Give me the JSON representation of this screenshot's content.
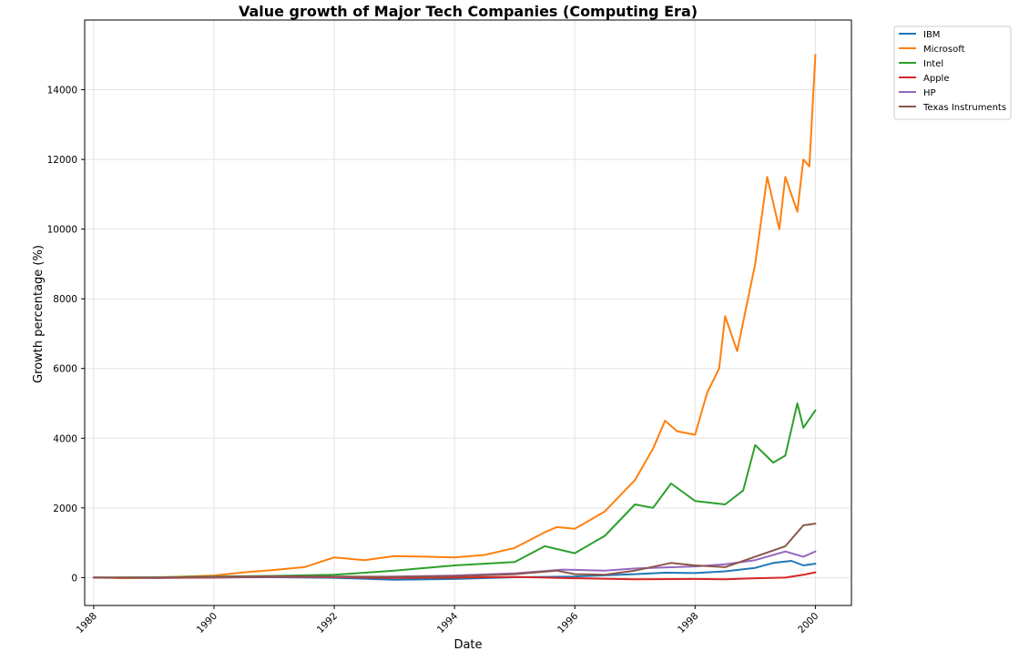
{
  "chart_data": {
    "type": "line",
    "title": "Value growth of Major Tech Companies (Computing Era)",
    "xlabel": "Date",
    "ylabel": "Growth percentage (%)",
    "xlim": [
      1987.85,
      2000.6
    ],
    "ylim": [
      -800,
      16000
    ],
    "x_ticks": [
      1988,
      1990,
      1992,
      1994,
      1996,
      1998,
      2000
    ],
    "y_ticks": [
      0,
      2000,
      4000,
      6000,
      8000,
      10000,
      12000,
      14000
    ],
    "grid": true,
    "legend_position": "outside-top-right",
    "series": [
      {
        "name": "IBM",
        "color": "#1f77b4",
        "x": [
          1988,
          1989,
          1990,
          1991,
          1992,
          1993,
          1994,
          1995,
          1996,
          1997,
          1997.5,
          1998,
          1998.5,
          1999,
          1999.3,
          1999.6,
          1999.8,
          2000
        ],
        "y": [
          0,
          -10,
          5,
          10,
          -5,
          -60,
          -40,
          10,
          30,
          100,
          140,
          130,
          180,
          280,
          420,
          480,
          350,
          400
        ]
      },
      {
        "name": "Microsoft",
        "color": "#ff7f0e",
        "x": [
          1988,
          1988.5,
          1989,
          1989.5,
          1990,
          1990.5,
          1991,
          1991.5,
          1992,
          1992.5,
          1993,
          1993.5,
          1994,
          1994.5,
          1995,
          1995.5,
          1995.7,
          1996,
          1996.5,
          1997,
          1997.3,
          1997.5,
          1997.7,
          1998,
          1998.2,
          1998.4,
          1998.5,
          1998.7,
          1999,
          1999.2,
          1999.4,
          1999.5,
          1999.7,
          1999.8,
          1999.9,
          2000
        ],
        "y": [
          0,
          -20,
          0,
          30,
          60,
          150,
          220,
          300,
          580,
          500,
          620,
          600,
          580,
          650,
          850,
          1300,
          1450,
          1400,
          1900,
          2800,
          3700,
          4500,
          4200,
          4100,
          5300,
          6000,
          7500,
          6500,
          9000,
          11500,
          10000,
          11500,
          10500,
          12000,
          11800,
          15000
        ]
      },
      {
        "name": "Intel",
        "color": "#2ca02c",
        "x": [
          1988,
          1989,
          1990,
          1991,
          1992,
          1993,
          1994,
          1995,
          1995.5,
          1996,
          1996.5,
          1997,
          1997.3,
          1997.6,
          1998,
          1998.5,
          1998.8,
          1999,
          1999.3,
          1999.5,
          1999.7,
          1999.8,
          2000
        ],
        "y": [
          0,
          10,
          30,
          50,
          80,
          200,
          350,
          450,
          900,
          700,
          1200,
          2100,
          2000,
          2700,
          2200,
          2100,
          2500,
          3800,
          3300,
          3500,
          5000,
          4300,
          4800
        ]
      },
      {
        "name": "Apple",
        "color": "#d62728",
        "x": [
          1988,
          1989,
          1990,
          1991,
          1992,
          1993,
          1994,
          1995,
          1996,
          1997,
          1998,
          1998.5,
          1999,
          1999.5,
          1999.8,
          2000
        ],
        "y": [
          0,
          -10,
          0,
          20,
          10,
          -10,
          0,
          20,
          -20,
          -50,
          -40,
          -50,
          -20,
          0,
          80,
          150
        ]
      },
      {
        "name": "HP",
        "color": "#9467bd",
        "x": [
          1988,
          1989,
          1990,
          1991,
          1992,
          1993,
          1994,
          1995,
          1995.8,
          1996.5,
          1997,
          1998,
          1998.5,
          1999,
          1999.5,
          1999.8,
          2000
        ],
        "y": [
          0,
          5,
          10,
          30,
          20,
          30,
          60,
          120,
          230,
          200,
          260,
          320,
          380,
          500,
          750,
          600,
          750
        ]
      },
      {
        "name": "Texas Instruments",
        "color": "#8c564b",
        "x": [
          1988,
          1989,
          1990,
          1991,
          1992,
          1993,
          1994,
          1995,
          1995.7,
          1996,
          1996.5,
          1997,
          1997.6,
          1998,
          1998.5,
          1999,
          1999.5,
          1999.8,
          2000
        ],
        "y": [
          0,
          0,
          20,
          40,
          30,
          20,
          40,
          100,
          200,
          100,
          80,
          200,
          420,
          350,
          300,
          600,
          900,
          1500,
          1550
        ]
      }
    ]
  }
}
